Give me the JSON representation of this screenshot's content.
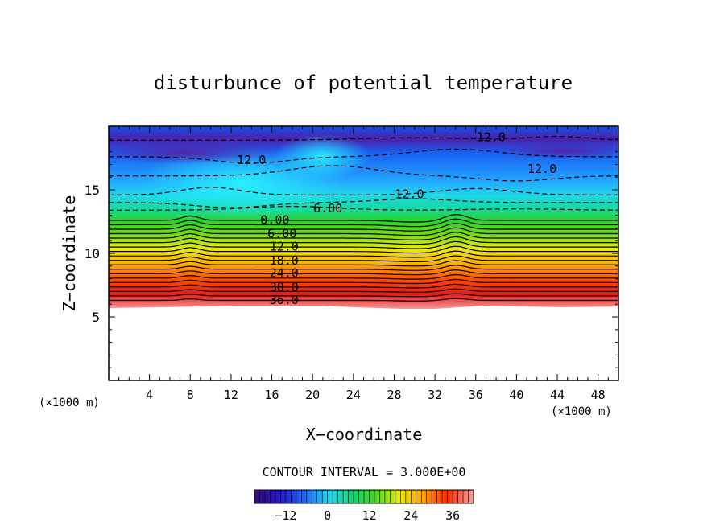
{
  "chart_data": {
    "type": "heatmap",
    "title": "disturbunce of potential temperature",
    "xlabel": "X−coordinate",
    "ylabel": "Z−coordinate",
    "x_unit": "(×1000 m)",
    "y_unit": "(×1000 m)",
    "xlim": [
      0,
      50
    ],
    "ylim": [
      0,
      20
    ],
    "x_ticks": [
      4,
      8,
      12,
      16,
      20,
      24,
      28,
      32,
      36,
      40,
      44,
      48
    ],
    "y_ticks": [
      5,
      10,
      15
    ],
    "grid": false,
    "field_bottom_z": 5.8,
    "field_top_z": 20,
    "contour_interval_label": "CONTOUR INTERVAL = 3.000E+00",
    "contour_labels": [
      {
        "text": "12.0",
        "x": 14,
        "z": 17.4,
        "style": "dashed"
      },
      {
        "text": "12.0",
        "x": 37.5,
        "z": 19.2,
        "style": "dashed"
      },
      {
        "text": "12.0",
        "x": 42.5,
        "z": 16.7,
        "style": "dashed"
      },
      {
        "text": "12.0",
        "x": 29.5,
        "z": 14.7,
        "style": "dashed"
      },
      {
        "text": "6.00",
        "x": 21.5,
        "z": 13.6,
        "style": "dashed"
      },
      {
        "text": "0.00",
        "x": 16.3,
        "z": 12.7,
        "style": "solid"
      },
      {
        "text": "6.00",
        "x": 17.0,
        "z": 11.6,
        "style": "solid"
      },
      {
        "text": "12.0",
        "x": 17.2,
        "z": 10.6,
        "style": "solid"
      },
      {
        "text": "18.0",
        "x": 17.2,
        "z": 9.5,
        "style": "solid"
      },
      {
        "text": "24.0",
        "x": 17.2,
        "z": 8.5,
        "style": "solid"
      },
      {
        "text": "30.0",
        "x": 17.2,
        "z": 7.4,
        "style": "solid"
      },
      {
        "text": "36.0",
        "x": 17.2,
        "z": 6.4,
        "style": "solid"
      }
    ],
    "colorbar": {
      "range": [
        -21,
        42
      ],
      "tick_values": [
        -12,
        0,
        12,
        24,
        36
      ],
      "tick_labels": [
        "−12",
        "0",
        "12",
        "24",
        "36"
      ]
    }
  }
}
